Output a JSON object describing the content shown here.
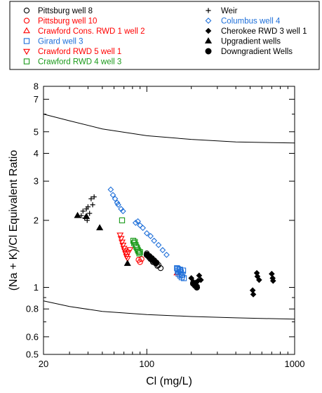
{
  "chart_data": {
    "type": "scatter",
    "xlabel": "Cl (mg/L)",
    "ylabel": "(Na + K)/Cl Equivalent Ratio",
    "xscale": "log",
    "yscale": "log",
    "xlim": [
      20,
      1000
    ],
    "ylim": [
      0.5,
      8
    ],
    "x_ticks": [
      "20",
      "100",
      "1000"
    ],
    "y_ticks": [
      "0.5",
      "0.6",
      "0.8",
      "1",
      "2",
      "3",
      "4",
      "5",
      "7",
      "8"
    ],
    "grid": false,
    "legend_position": "top, outside plot (boxed)",
    "reference_curves": [
      {
        "x": [
          20,
          30,
          50,
          100,
          200,
          400,
          1000
        ],
        "y": [
          6.0,
          5.6,
          5.15,
          4.8,
          4.62,
          4.5,
          4.45
        ]
      },
      {
        "x": [
          20,
          30,
          50,
          100,
          200,
          400,
          1000
        ],
        "y": [
          0.87,
          0.82,
          0.78,
          0.755,
          0.74,
          0.73,
          0.72
        ]
      }
    ],
    "series": [
      {
        "name": "Pittsburg well 8",
        "marker": "circle-open",
        "color": "#000000",
        "points": [
          [
            100,
            1.42
          ],
          [
            102,
            1.38
          ],
          [
            104,
            1.36
          ],
          [
            106,
            1.34
          ],
          [
            108,
            1.33
          ],
          [
            110,
            1.3
          ],
          [
            112,
            1.3
          ],
          [
            115,
            1.28
          ],
          [
            118,
            1.25
          ],
          [
            120,
            1.26
          ],
          [
            124,
            1.22
          ]
        ]
      },
      {
        "name": "Pittsburg  well 10",
        "marker": "circle-open",
        "color": "#ff0000",
        "points": [
          [
            88,
            1.33
          ],
          [
            90,
            1.3
          ],
          [
            92,
            1.34
          ]
        ]
      },
      {
        "name": "Crawford Cons. RWD 1 well 2",
        "marker": "triangle-up-open",
        "color": "#ff0000",
        "points": [
          [
            160,
            1.16
          ]
        ]
      },
      {
        "name": "Girard well 3",
        "marker": "square-open",
        "color": "#1e6fd9",
        "points": [
          [
            160,
            1.22
          ],
          [
            162,
            1.18
          ],
          [
            164,
            1.15
          ],
          [
            166,
            1.2
          ],
          [
            168,
            1.13
          ],
          [
            170,
            1.17
          ],
          [
            172,
            1.11
          ],
          [
            174,
            1.14
          ],
          [
            176,
            1.19
          ],
          [
            178,
            1.1
          ],
          [
            162,
            1.21
          ],
          [
            168,
            1.2
          ]
        ]
      },
      {
        "name": "Crawford RWD 5 well 1",
        "marker": "triangle-down-open",
        "color": "#ff0000",
        "points": [
          [
            66,
            1.72
          ],
          [
            67,
            1.66
          ],
          [
            68,
            1.6
          ],
          [
            69,
            1.55
          ],
          [
            70,
            1.5
          ],
          [
            71,
            1.46
          ],
          [
            72,
            1.42
          ],
          [
            73,
            1.38
          ],
          [
            74,
            1.35
          ],
          [
            75,
            1.44
          ],
          [
            77,
            1.48
          ]
        ]
      },
      {
        "name": "Crawford RWD 4 well 3",
        "marker": "square-open",
        "color": "#1a9a1a",
        "points": [
          [
            68,
            2.0
          ],
          [
            81,
            1.62
          ],
          [
            82,
            1.58
          ],
          [
            83,
            1.6
          ],
          [
            84,
            1.55
          ],
          [
            85,
            1.52
          ],
          [
            86,
            1.5
          ],
          [
            87,
            1.47
          ],
          [
            88,
            1.45
          ],
          [
            89,
            1.42
          ],
          [
            90,
            1.44
          ]
        ]
      },
      {
        "name": "Weir",
        "marker": "plus",
        "color": "#000000",
        "points": [
          [
            36,
            2.1
          ],
          [
            37,
            2.2
          ],
          [
            38,
            2.05
          ],
          [
            39,
            2.25
          ],
          [
            40,
            2.3
          ],
          [
            41,
            2.15
          ],
          [
            42,
            2.5
          ],
          [
            43,
            2.35
          ],
          [
            44,
            2.55
          ],
          [
            39.5,
            2.0
          ]
        ]
      },
      {
        "name": "Columbus well 4",
        "marker": "diamond-open",
        "color": "#1e6fd9",
        "points": [
          [
            57,
            2.75
          ],
          [
            59,
            2.6
          ],
          [
            61,
            2.5
          ],
          [
            63,
            2.4
          ],
          [
            64,
            2.35
          ],
          [
            67,
            2.25
          ],
          [
            69,
            2.2
          ],
          [
            84,
            1.95
          ],
          [
            87,
            1.98
          ],
          [
            90,
            1.9
          ],
          [
            94,
            1.85
          ],
          [
            100,
            1.75
          ],
          [
            106,
            1.7
          ],
          [
            112,
            1.62
          ],
          [
            120,
            1.55
          ],
          [
            128,
            1.47
          ],
          [
            136,
            1.4
          ]
        ]
      },
      {
        "name": "Cherokee RWD 3 well 1",
        "marker": "diamond-filled",
        "color": "#000000",
        "points": [
          [
            200,
            1.1
          ],
          [
            206,
            1.06
          ],
          [
            210,
            1.03
          ],
          [
            214,
            1.05
          ],
          [
            218,
            1.02
          ],
          [
            222,
            1.07
          ],
          [
            226,
            1.13
          ],
          [
            232,
            1.08
          ],
          [
            520,
            0.97
          ],
          [
            525,
            0.93
          ],
          [
            555,
            1.16
          ],
          [
            560,
            1.12
          ],
          [
            575,
            1.08
          ],
          [
            700,
            1.15
          ],
          [
            710,
            1.1
          ],
          [
            715,
            1.07
          ]
        ]
      },
      {
        "name": "Upgradient wells",
        "marker": "triangle-up-filled",
        "color": "#000000",
        "points": [
          [
            34,
            2.1
          ],
          [
            39,
            2.08
          ],
          [
            48,
            1.85
          ],
          [
            74,
            1.28
          ]
        ]
      },
      {
        "name": "Downgradient Wells",
        "marker": "circle-filled",
        "color": "#000000",
        "points": [
          [
            100,
            1.4
          ],
          [
            104,
            1.38
          ],
          [
            108,
            1.35
          ],
          [
            112,
            1.32
          ],
          [
            116,
            1.29
          ],
          [
            206,
            1.04
          ],
          [
            212,
            1.02
          ],
          [
            218,
            1.0
          ]
        ]
      }
    ]
  }
}
